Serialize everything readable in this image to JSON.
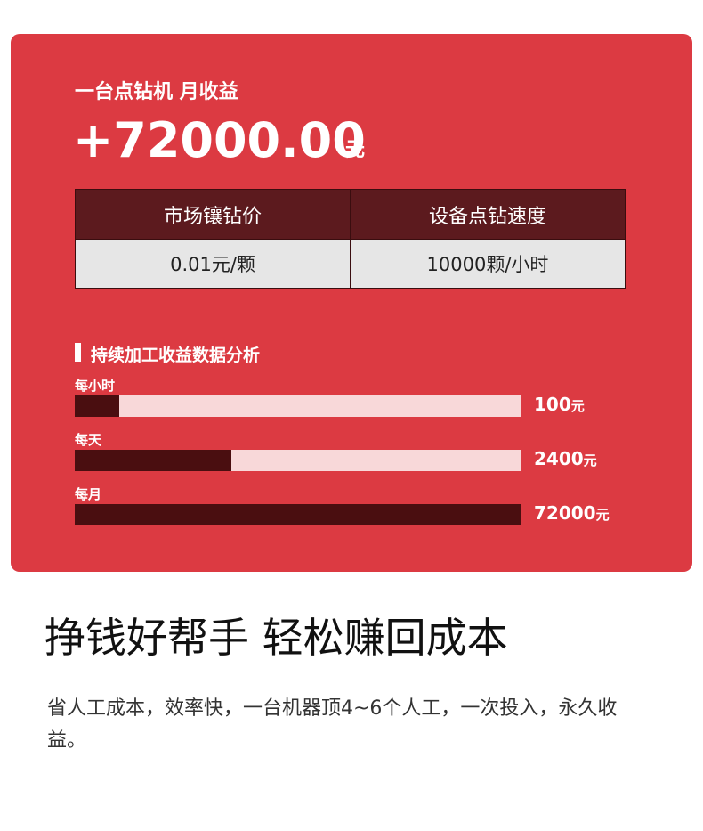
{
  "card": {
    "label": "一台点钻机 月收益",
    "amount": "+72000.00",
    "unit": "元",
    "table": {
      "headers": [
        "市场镶钻价",
        "设备点钻速度"
      ],
      "rows": [
        [
          "0.01元/颗",
          "10000颗/小时"
        ]
      ]
    },
    "analysis": {
      "title": "持续加工收益数据分析",
      "items": [
        {
          "label": "每小时",
          "fill": 10,
          "value": "100",
          "unit": "元"
        },
        {
          "label": "每天",
          "fill": 35,
          "value": "2400",
          "unit": "元"
        },
        {
          "label": "每月",
          "fill": 100,
          "value": "72000",
          "unit": "元"
        }
      ]
    }
  },
  "headline": "挣钱好帮手 轻松赚回成本",
  "body": "省人工成本，效率快，一台机器顶4~6个人工，一次投入，永久收益。"
}
